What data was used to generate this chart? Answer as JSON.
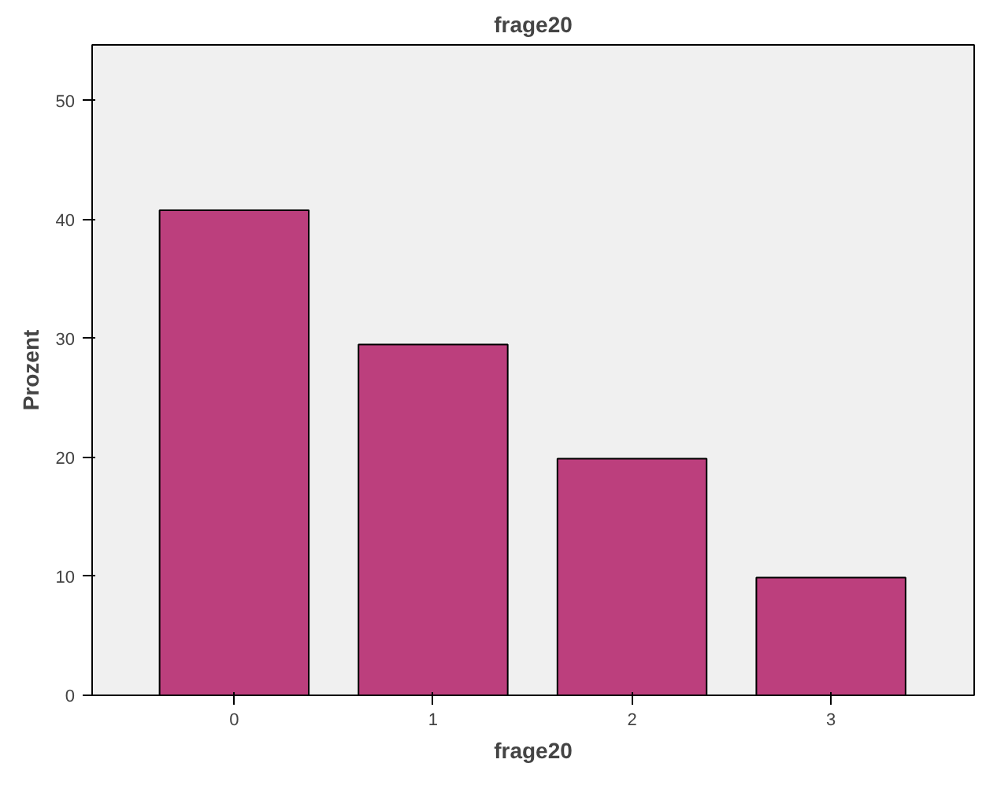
{
  "chart_data": {
    "type": "bar",
    "title": "frage20",
    "xlabel": "frage20",
    "ylabel": "Prozent",
    "categories": [
      "0",
      "1",
      "2",
      "3"
    ],
    "values": [
      40.8,
      29.5,
      19.9,
      9.9
    ],
    "color": "#bc3f7d",
    "ylim": [
      0,
      54.7
    ],
    "yticks": [
      0,
      10,
      20,
      30,
      40,
      50
    ],
    "grid": false
  }
}
